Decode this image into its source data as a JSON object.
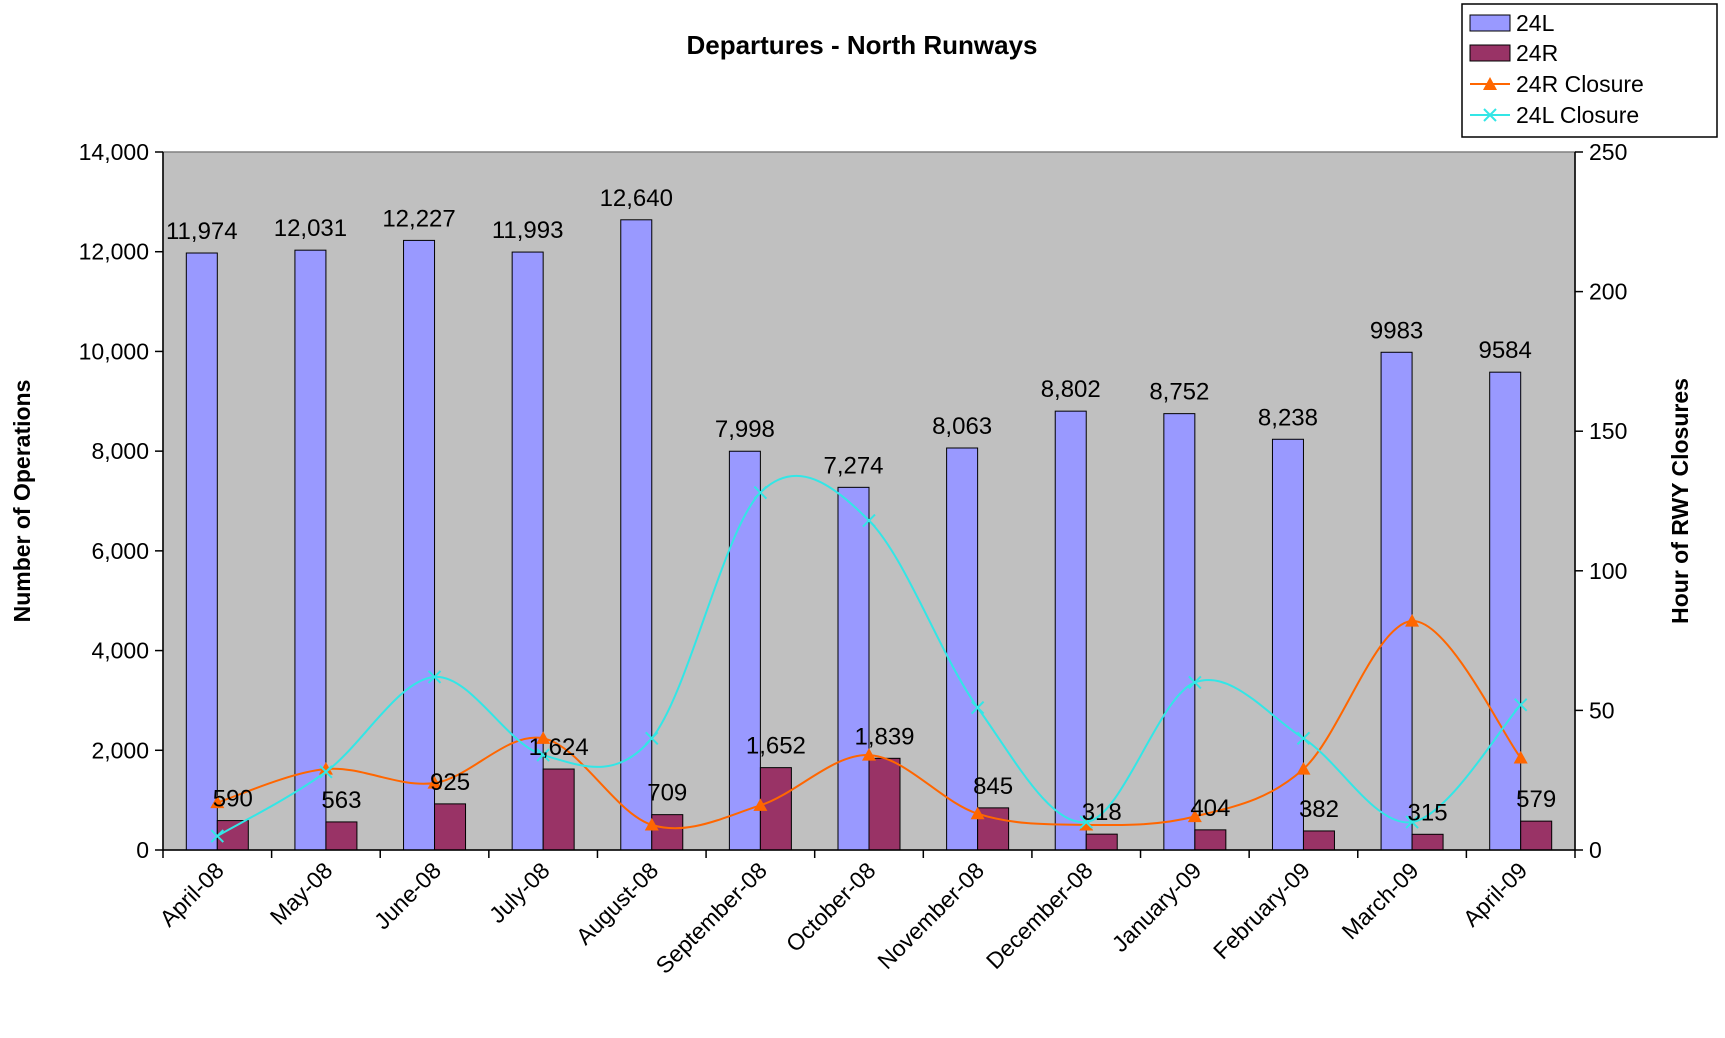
{
  "chart_data": {
    "type": "bar",
    "title": "Departures - North Runways",
    "ylabel": "Number of Operations",
    "y2label": "Hour of RWY Closures",
    "ylim": [
      0,
      14000
    ],
    "y2lim": [
      0,
      250
    ],
    "yticks": [
      "0",
      "2,000",
      "4,000",
      "6,000",
      "8,000",
      "10,000",
      "12,000",
      "14,000"
    ],
    "y2ticks": [
      "0",
      "50",
      "100",
      "150",
      "200",
      "250"
    ],
    "grid": false,
    "legend_position": "top-right",
    "categories": [
      "April-08",
      "May-08",
      "June-08",
      "July-08",
      "August-08",
      "September-08",
      "October-08",
      "November-08",
      "December-08",
      "January-09",
      "February-09",
      "March-09",
      "April-09"
    ],
    "series": [
      {
        "name": "24L",
        "kind": "bar",
        "axis": "left",
        "color": "#9999ff",
        "values": [
          11974,
          12031,
          12227,
          11993,
          12640,
          7998,
          7274,
          8063,
          8802,
          8752,
          8238,
          9983,
          9584
        ],
        "labels": [
          "11,974",
          "12,031",
          "12,227",
          "11,993",
          "12,640",
          "7,998",
          "7,274",
          "8,063",
          "8,802",
          "8,752",
          "8,238",
          "9983",
          "9584"
        ]
      },
      {
        "name": "24R",
        "kind": "bar",
        "axis": "left",
        "color": "#993366",
        "values": [
          590,
          563,
          925,
          1624,
          709,
          1652,
          1839,
          845,
          318,
          404,
          382,
          315,
          579
        ],
        "labels": [
          "590",
          "563",
          "925",
          "1,624",
          "709",
          "1,652",
          "1,839",
          "845",
          "318",
          "404",
          "382",
          "315",
          "579"
        ]
      },
      {
        "name": "24R Closure",
        "kind": "line",
        "axis": "right",
        "color": "#ff6600",
        "marker": "triangle",
        "values": [
          17,
          29,
          24,
          40,
          9,
          16,
          34,
          13,
          9,
          12,
          29,
          82,
          33
        ]
      },
      {
        "name": "24L Closure",
        "kind": "line",
        "axis": "right",
        "color": "#33e6e6",
        "marker": "x",
        "values": [
          5,
          28,
          62,
          34,
          40,
          128,
          118,
          51,
          10,
          60,
          40,
          10,
          52
        ]
      }
    ]
  }
}
